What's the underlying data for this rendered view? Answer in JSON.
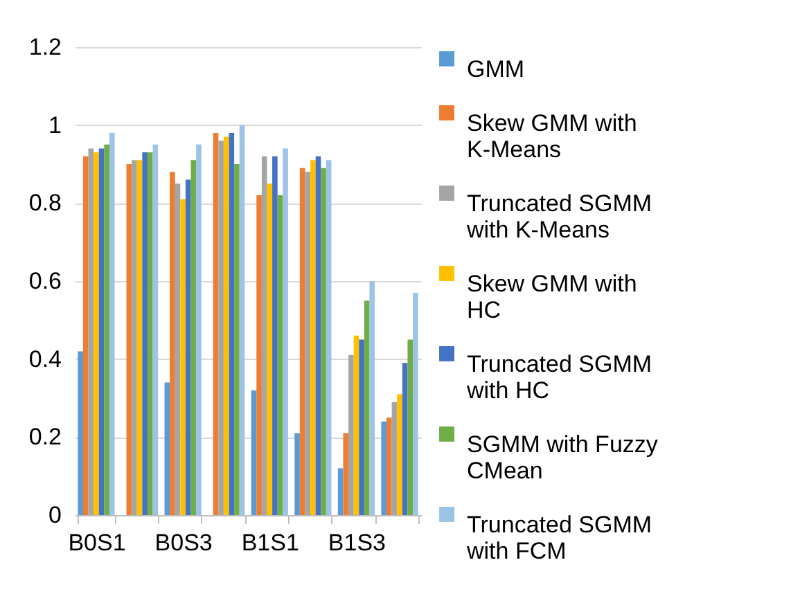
{
  "chart_data": {
    "type": "bar",
    "categories": [
      "B0S1",
      null,
      "B0S3",
      null,
      "B1S1",
      null,
      "B1S3",
      null
    ],
    "series": [
      {
        "name": "GMM",
        "color": "#5b9bd5",
        "values": [
          0.42,
          null,
          0.34,
          null,
          0.32,
          0.21,
          0.12,
          0.24
        ]
      },
      {
        "name": "Skew GMM with K-Means",
        "color": "#ed7d31",
        "values": [
          0.92,
          0.9,
          0.88,
          0.98,
          0.82,
          0.89,
          0.21,
          0.25
        ]
      },
      {
        "name": "Truncated SGMM with K-Means",
        "color": "#a5a5a5",
        "values": [
          0.94,
          0.91,
          0.85,
          0.96,
          0.92,
          0.88,
          0.41,
          0.29
        ]
      },
      {
        "name": "Skew GMM with HC",
        "color": "#ffc000",
        "values": [
          0.93,
          0.91,
          0.81,
          0.97,
          0.85,
          0.91,
          0.46,
          0.31
        ]
      },
      {
        "name": "Truncated SGMM with HC",
        "color": "#4472c4",
        "values": [
          0.94,
          0.93,
          0.86,
          0.98,
          0.92,
          0.92,
          0.45,
          0.39
        ]
      },
      {
        "name": "SGMM with Fuzzy CMean",
        "color": "#70ad47",
        "values": [
          0.95,
          0.93,
          0.91,
          0.9,
          0.82,
          0.89,
          0.55,
          0.45
        ]
      },
      {
        "name": "Truncated SGMM with FCM",
        "color": "#9dc3e6",
        "values": [
          0.98,
          0.95,
          0.95,
          1.0,
          0.94,
          0.91,
          0.6,
          0.57
        ]
      }
    ],
    "ylim": [
      0,
      1.2
    ],
    "yticks": [
      0,
      0.2,
      0.4,
      0.6,
      0.8,
      1,
      1.2
    ],
    "grid": "y",
    "legend": "right"
  }
}
